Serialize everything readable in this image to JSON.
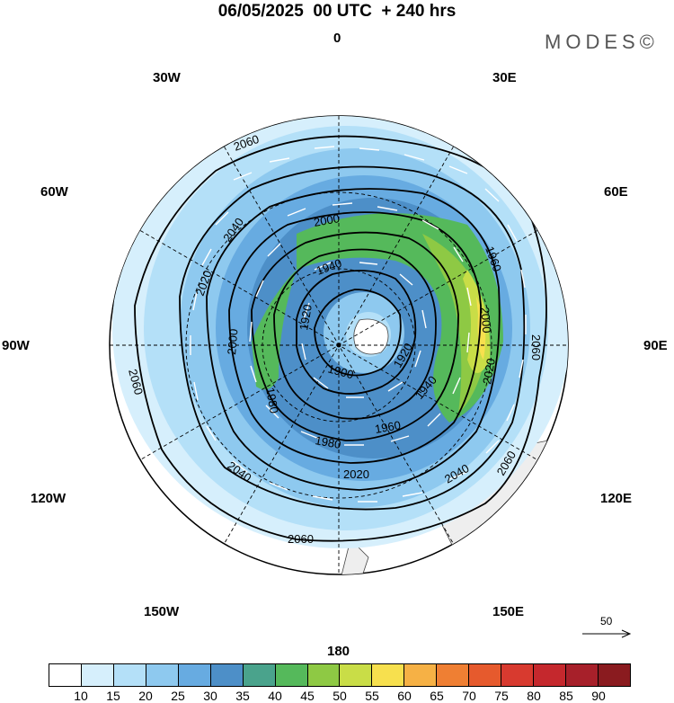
{
  "title": "06/05/2025  00 UTC  + 240 hrs",
  "logo": "MODES©",
  "longitude_labels": {
    "n0": "0",
    "e30": "30E",
    "e60": "60E",
    "e90": "90E",
    "e120": "120E",
    "e150": "150E",
    "s180": "180",
    "w150": "150W",
    "w120": "120W",
    "w90": "90W",
    "w60": "60W",
    "w30": "30W"
  },
  "contour_labels": [
    "2060",
    "2060",
    "2060",
    "2060",
    "2060",
    "2040",
    "2040",
    "2040",
    "2020",
    "2020",
    "2020",
    "2000",
    "2000",
    "2000",
    "1980",
    "1980",
    "1960",
    "1960",
    "1940",
    "1940",
    "1920",
    "1920",
    "1900"
  ],
  "reference_vector": "50",
  "colorbar": {
    "colors": [
      "#ffffff",
      "#d6effc",
      "#b4e0f8",
      "#8ec9ef",
      "#67abe1",
      "#4d8fc8",
      "#4aa38c",
      "#55b95b",
      "#8ec944",
      "#c9dd47",
      "#f7e04e",
      "#f6b145",
      "#ef7f33",
      "#e65a2d",
      "#d83a2f",
      "#c5282d",
      "#a7202a",
      "#8a1b1f"
    ],
    "labels": [
      "10",
      "15",
      "20",
      "25",
      "30",
      "35",
      "40",
      "45",
      "50",
      "55",
      "60",
      "65",
      "70",
      "75",
      "80",
      "85",
      "90"
    ]
  }
}
